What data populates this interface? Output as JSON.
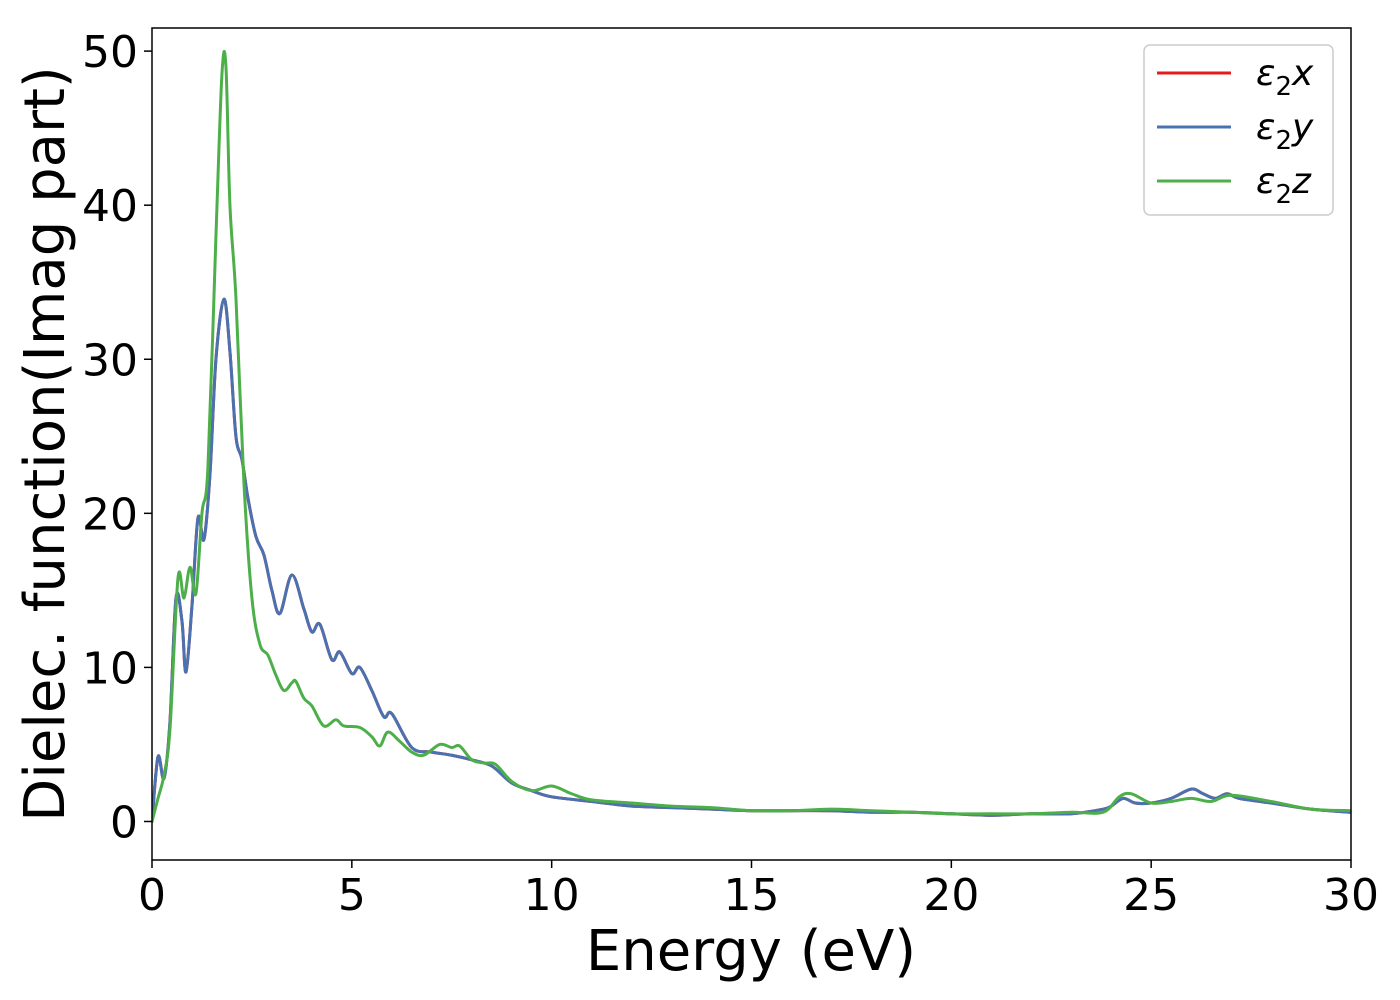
{
  "chart_data": {
    "type": "line",
    "xlabel": "Energy (eV)",
    "ylabel": "Dielec. function(Imag part)",
    "xlim": [
      0,
      30
    ],
    "ylim": [
      -2.5,
      51.5
    ],
    "xticks": [
      0,
      5,
      10,
      15,
      20,
      25,
      30
    ],
    "yticks": [
      0,
      10,
      20,
      30,
      40,
      50
    ],
    "grid": false,
    "legend_position": "top-right",
    "series": [
      {
        "key": "x",
        "legend_sym": "ε",
        "legend_sub": "2",
        "legend_var": "x",
        "color": "#e41a1c",
        "x": [
          0,
          0.15,
          0.3,
          0.45,
          0.6,
          0.75,
          0.85,
          1.0,
          1.15,
          1.3,
          1.45,
          1.6,
          1.8,
          1.95,
          2.1,
          2.25,
          2.4,
          2.6,
          2.8,
          3.0,
          3.2,
          3.5,
          3.8,
          4.0,
          4.2,
          4.5,
          4.7,
          5.0,
          5.2,
          5.5,
          5.8,
          6.0,
          6.5,
          7.0,
          7.5,
          8.0,
          8.5,
          9.0,
          9.5,
          10.0,
          11.0,
          12.0,
          13.0,
          14.0,
          15.0,
          16.0,
          17.0,
          18.0,
          19.0,
          20.0,
          21.0,
          22.0,
          23.0,
          23.8,
          24.0,
          24.3,
          24.6,
          25.0,
          25.5,
          26.0,
          26.3,
          26.6,
          26.9,
          27.2,
          28.0,
          29.0,
          30.0
        ],
        "values": [
          0,
          4.2,
          2.8,
          6.5,
          14.5,
          13.0,
          9.7,
          14.0,
          19.7,
          18.3,
          22.5,
          30.0,
          33.9,
          30.5,
          25.0,
          23.5,
          21.0,
          18.5,
          17.3,
          15.0,
          13.5,
          16.0,
          13.8,
          12.3,
          12.8,
          10.5,
          11.0,
          9.6,
          10.0,
          8.5,
          6.8,
          7.0,
          4.8,
          4.5,
          4.3,
          4.0,
          3.6,
          2.5,
          2.0,
          1.6,
          1.3,
          1.0,
          0.9,
          0.8,
          0.7,
          0.7,
          0.7,
          0.6,
          0.6,
          0.5,
          0.4,
          0.5,
          0.5,
          0.8,
          1.0,
          1.5,
          1.2,
          1.2,
          1.5,
          2.1,
          1.8,
          1.5,
          1.8,
          1.5,
          1.2,
          0.8,
          0.6
        ]
      },
      {
        "key": "y",
        "legend_sym": "ε",
        "legend_sub": "2",
        "legend_var": "y",
        "color": "#4a72b0",
        "x": [
          0,
          0.15,
          0.3,
          0.45,
          0.6,
          0.75,
          0.85,
          1.0,
          1.15,
          1.3,
          1.45,
          1.6,
          1.8,
          1.95,
          2.1,
          2.25,
          2.4,
          2.6,
          2.8,
          3.0,
          3.2,
          3.5,
          3.8,
          4.0,
          4.2,
          4.5,
          4.7,
          5.0,
          5.2,
          5.5,
          5.8,
          6.0,
          6.5,
          7.0,
          7.5,
          8.0,
          8.5,
          9.0,
          9.5,
          10.0,
          11.0,
          12.0,
          13.0,
          14.0,
          15.0,
          16.0,
          17.0,
          18.0,
          19.0,
          20.0,
          21.0,
          22.0,
          23.0,
          23.8,
          24.0,
          24.3,
          24.6,
          25.0,
          25.5,
          26.0,
          26.3,
          26.6,
          26.9,
          27.2,
          28.0,
          29.0,
          30.0
        ],
        "values": [
          0,
          4.2,
          2.8,
          6.5,
          14.5,
          13.0,
          9.7,
          14.0,
          19.7,
          18.3,
          22.5,
          30.0,
          33.9,
          30.5,
          25.0,
          23.5,
          21.0,
          18.5,
          17.3,
          15.0,
          13.5,
          16.0,
          13.8,
          12.3,
          12.8,
          10.5,
          11.0,
          9.6,
          10.0,
          8.5,
          6.8,
          7.0,
          4.8,
          4.5,
          4.3,
          4.0,
          3.6,
          2.5,
          2.0,
          1.6,
          1.3,
          1.0,
          0.9,
          0.8,
          0.7,
          0.7,
          0.7,
          0.6,
          0.6,
          0.5,
          0.4,
          0.5,
          0.5,
          0.8,
          1.0,
          1.5,
          1.2,
          1.2,
          1.5,
          2.1,
          1.8,
          1.5,
          1.8,
          1.5,
          1.2,
          0.8,
          0.6
        ]
      },
      {
        "key": "z",
        "legend_sym": "ε",
        "legend_sub": "2",
        "legend_var": "z",
        "color": "#4daf4a",
        "x": [
          0,
          0.15,
          0.3,
          0.45,
          0.65,
          0.8,
          0.95,
          1.1,
          1.25,
          1.4,
          1.6,
          1.75,
          1.85,
          1.95,
          2.1,
          2.3,
          2.5,
          2.7,
          2.9,
          3.1,
          3.3,
          3.5,
          3.6,
          3.8,
          4.0,
          4.3,
          4.6,
          4.8,
          5.2,
          5.5,
          5.7,
          5.9,
          6.2,
          6.5,
          6.8,
          7.2,
          7.5,
          7.7,
          8.0,
          8.3,
          8.6,
          9.0,
          9.5,
          10.0,
          10.5,
          11.0,
          12.0,
          13.0,
          14.0,
          15.0,
          16.0,
          17.0,
          18.0,
          19.0,
          20.0,
          21.0,
          22.0,
          23.0,
          23.8,
          24.2,
          24.5,
          25.0,
          25.5,
          26.0,
          26.5,
          27.0,
          28.0,
          29.0,
          30.0
        ],
        "values": [
          0,
          1.5,
          3.0,
          6.0,
          15.8,
          14.5,
          16.5,
          14.8,
          20.0,
          23.0,
          38.0,
          48.5,
          49.0,
          40.0,
          34.0,
          22.0,
          14.5,
          11.5,
          10.8,
          9.5,
          8.5,
          9.0,
          9.1,
          8.0,
          7.5,
          6.2,
          6.6,
          6.2,
          6.1,
          5.5,
          4.9,
          5.8,
          5.2,
          4.5,
          4.3,
          5.0,
          4.8,
          4.9,
          4.0,
          3.8,
          3.7,
          2.6,
          2.0,
          2.3,
          1.8,
          1.4,
          1.2,
          1.0,
          0.9,
          0.7,
          0.7,
          0.8,
          0.7,
          0.6,
          0.5,
          0.5,
          0.5,
          0.6,
          0.6,
          1.6,
          1.8,
          1.2,
          1.3,
          1.5,
          1.3,
          1.7,
          1.3,
          0.8,
          0.7
        ]
      }
    ]
  }
}
